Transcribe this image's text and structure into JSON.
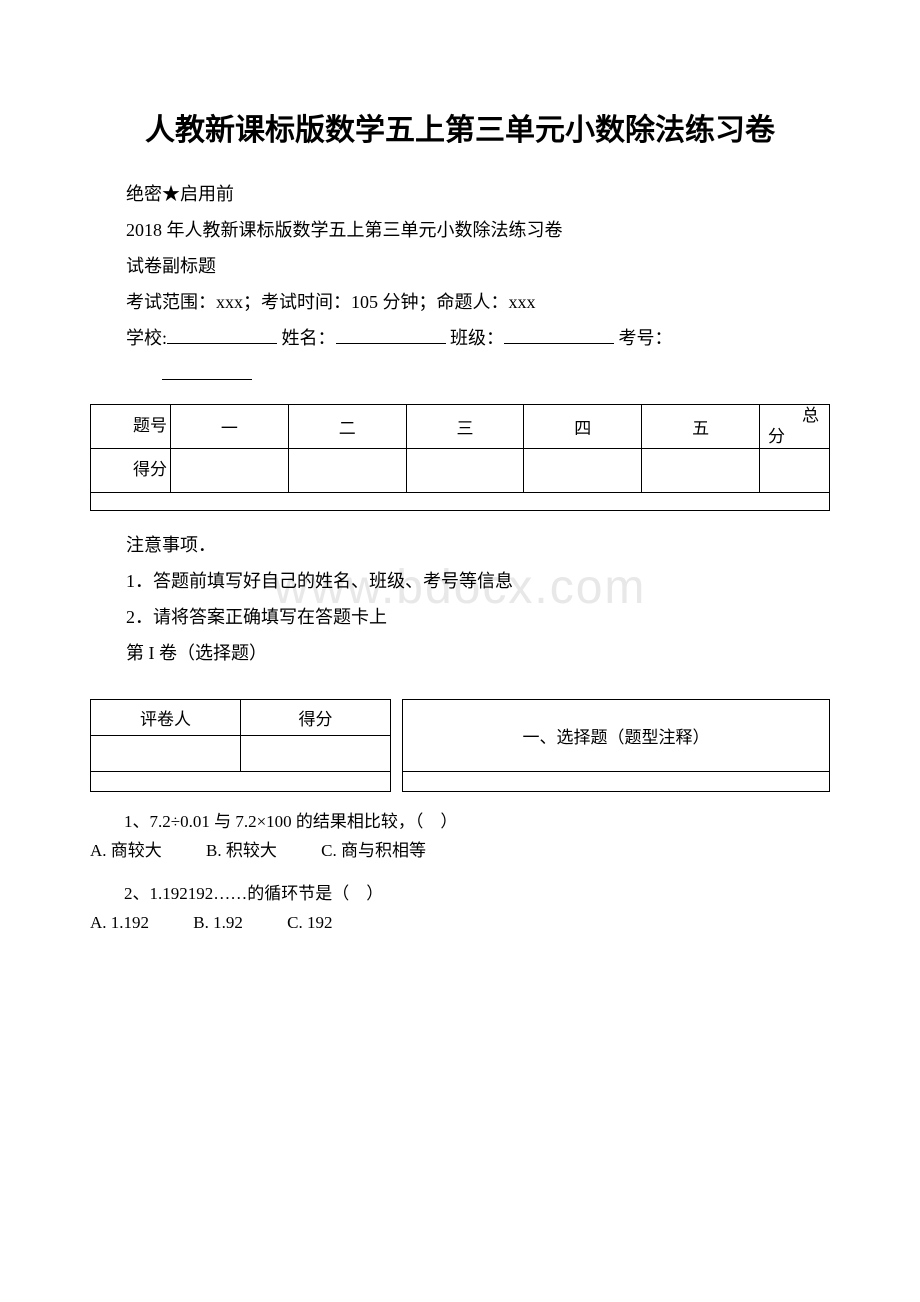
{
  "title": "人教新课标版数学五上第三单元小数除法练习卷",
  "watermark": "www.bdocx.com",
  "header": {
    "secret": "绝密★启用前",
    "exam_title": "2018 年人教新课标版数学五上第三单元小数除法练习卷",
    "subtitle": "试卷副标题",
    "scope_line": "考试范围：xxx；考试时间：105 分钟；命题人：xxx",
    "school_label": "学校:",
    "name_label": "姓名：",
    "class_label": "班级：",
    "exam_no_label": "考号："
  },
  "score_table": {
    "row1_label": "题号",
    "cols": [
      "一",
      "二",
      "三",
      "四",
      "五"
    ],
    "total_label": "总分",
    "row2_label": "得分"
  },
  "notes": {
    "title": "注意事项．",
    "item1": "1．答题前填写好自己的姓名、班级、考号等信息",
    "item2": "2．请将答案正确填写在答题卡上",
    "section1": "第 I 卷（选择题）"
  },
  "section_table": {
    "grader": "评卷人",
    "score": "得分",
    "section_title": "一、选择题（题型注释）"
  },
  "questions": {
    "q1": {
      "text": "1、7.2÷0.01 与 7.2×100 的结果相比较，（　）",
      "optA": "A. 商较大",
      "optB": "B. 积较大",
      "optC": "C. 商与积相等"
    },
    "q2": {
      "text": "2、1.192192……的循环节是（　）",
      "optA": "A. 1.192",
      "optB": "B. 1.92",
      "optC": "C. 192"
    }
  }
}
